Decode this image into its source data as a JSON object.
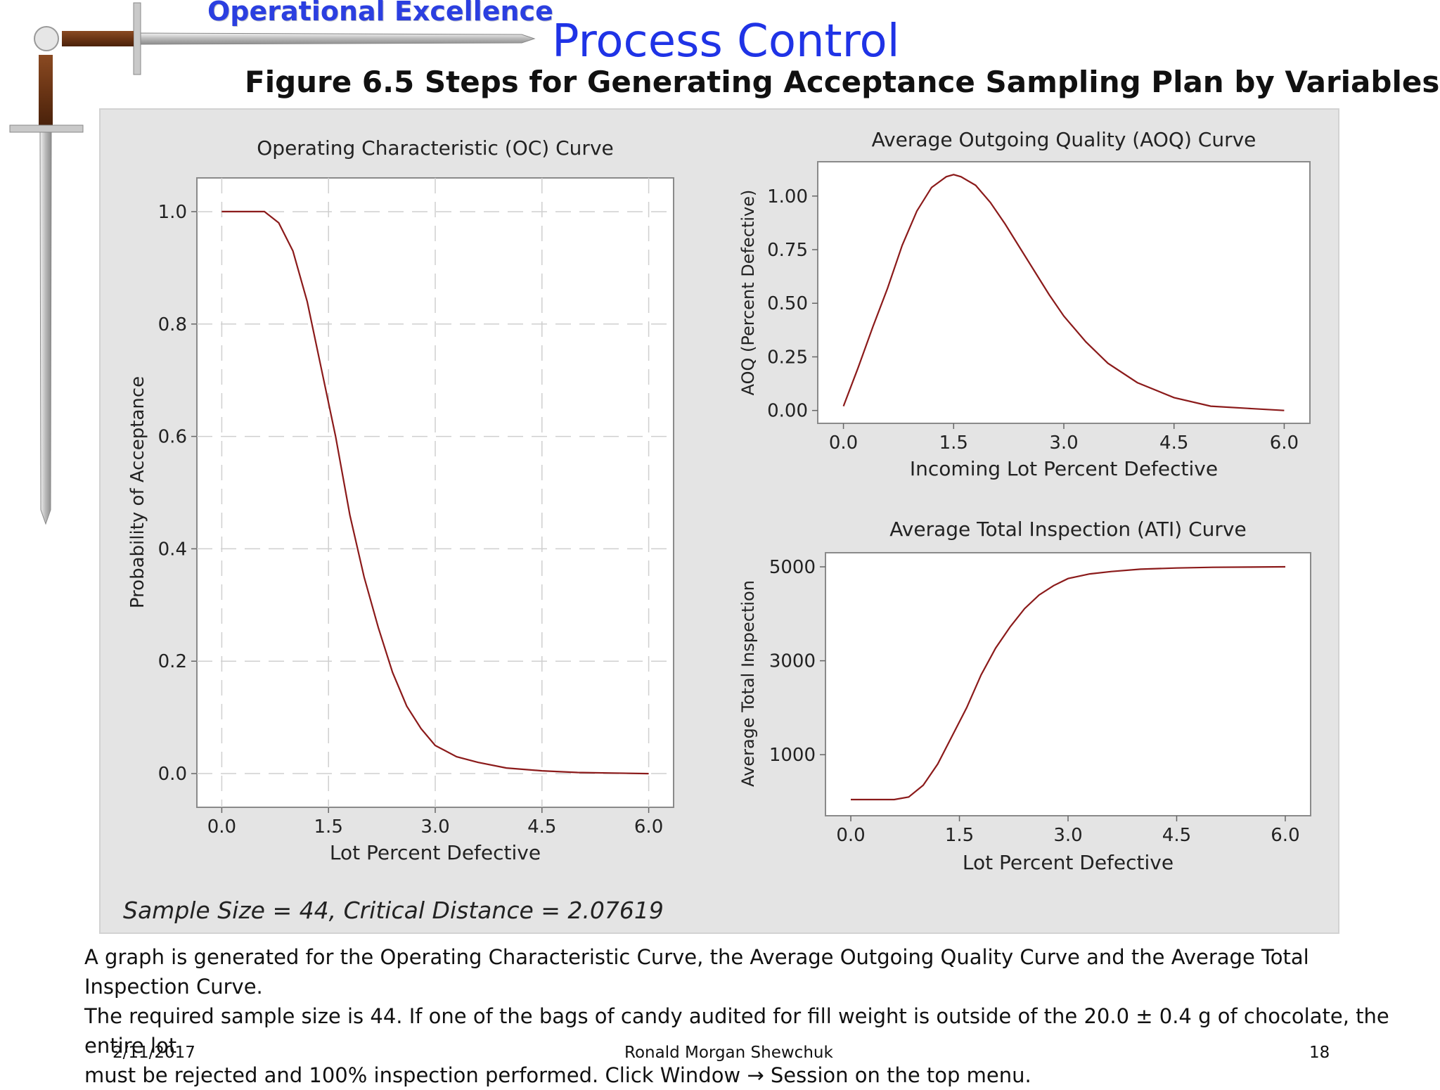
{
  "header": {
    "brand": "Operational Excellence",
    "title": "Process Control",
    "figure_title": "Figure 6.5  Steps for Generating Acceptance Sampling Plan by Variables"
  },
  "icons": {
    "logo": "sword-icon"
  },
  "panel": {
    "annotation": "Sample Size = 44, Critical Distance = 2.07619"
  },
  "colors": {
    "curve": "#8b1a1a",
    "panel_bg": "#e4e4e4",
    "title": "#1f33e6"
  },
  "chart_data": [
    {
      "id": "oc",
      "type": "line",
      "title": "Operating Characteristic (OC) Curve",
      "xlabel": "Lot Percent Defective",
      "ylabel": "Probability of Acceptance",
      "xlim": [
        -0.35,
        6.35
      ],
      "ylim": [
        -0.06,
        1.06
      ],
      "xticks": [
        0.0,
        1.5,
        3.0,
        4.5,
        6.0
      ],
      "xtick_labels": [
        "0.0",
        "1.5",
        "3.0",
        "4.5",
        "6.0"
      ],
      "yticks": [
        0.0,
        0.2,
        0.4,
        0.6,
        0.8,
        1.0
      ],
      "ytick_labels": [
        "0.0",
        "0.2",
        "0.4",
        "0.6",
        "0.8",
        "1.0"
      ],
      "grid": true,
      "series": [
        {
          "x": [
            0.0,
            0.3,
            0.6,
            0.8,
            1.0,
            1.2,
            1.4,
            1.6,
            1.8,
            2.0,
            2.2,
            2.4,
            2.6,
            2.8,
            3.0,
            3.3,
            3.6,
            4.0,
            4.5,
            5.0,
            5.5,
            6.0
          ],
          "y": [
            1.0,
            1.0,
            1.0,
            0.98,
            0.93,
            0.84,
            0.72,
            0.6,
            0.46,
            0.35,
            0.26,
            0.18,
            0.12,
            0.08,
            0.05,
            0.03,
            0.02,
            0.01,
            0.005,
            0.002,
            0.001,
            0.0
          ]
        }
      ]
    },
    {
      "id": "aoq",
      "type": "line",
      "title": "Average Outgoing Quality (AOQ) Curve",
      "xlabel": "Incoming Lot Percent Defective",
      "ylabel": "AOQ (Percent Defective)",
      "xlim": [
        -0.35,
        6.35
      ],
      "ylim": [
        -0.06,
        1.16
      ],
      "xticks": [
        0.0,
        1.5,
        3.0,
        4.5,
        6.0
      ],
      "xtick_labels": [
        "0.0",
        "1.5",
        "3.0",
        "4.5",
        "6.0"
      ],
      "yticks": [
        0.0,
        0.25,
        0.5,
        0.75,
        1.0
      ],
      "ytick_labels": [
        "0.00",
        "0.25",
        "0.50",
        "0.75",
        "1.00"
      ],
      "grid": false,
      "series": [
        {
          "x": [
            0.0,
            0.2,
            0.4,
            0.6,
            0.8,
            1.0,
            1.2,
            1.4,
            1.5,
            1.6,
            1.8,
            2.0,
            2.2,
            2.4,
            2.6,
            2.8,
            3.0,
            3.3,
            3.6,
            4.0,
            4.5,
            5.0,
            5.5,
            6.0
          ],
          "y": [
            0.02,
            0.2,
            0.39,
            0.57,
            0.77,
            0.93,
            1.04,
            1.09,
            1.1,
            1.09,
            1.05,
            0.97,
            0.87,
            0.76,
            0.65,
            0.54,
            0.44,
            0.32,
            0.22,
            0.13,
            0.06,
            0.02,
            0.01,
            0.0
          ]
        }
      ]
    },
    {
      "id": "ati",
      "type": "line",
      "title": "Average Total Inspection (ATI) Curve",
      "xlabel": "Lot Percent Defective",
      "ylabel": "Average Total Inspection",
      "xlim": [
        -0.35,
        6.35
      ],
      "ylim": [
        -300,
        5300
      ],
      "xticks": [
        0.0,
        1.5,
        3.0,
        4.5,
        6.0
      ],
      "xtick_labels": [
        "0.0",
        "1.5",
        "3.0",
        "4.5",
        "6.0"
      ],
      "yticks": [
        1000,
        3000,
        5000
      ],
      "ytick_labels": [
        "1000",
        "3000",
        "5000"
      ],
      "grid": false,
      "series": [
        {
          "x": [
            0.0,
            0.3,
            0.6,
            0.8,
            1.0,
            1.2,
            1.4,
            1.6,
            1.8,
            2.0,
            2.2,
            2.4,
            2.6,
            2.8,
            3.0,
            3.3,
            3.6,
            4.0,
            4.5,
            5.0,
            5.5,
            6.0
          ],
          "y": [
            44,
            44,
            44,
            100,
            350,
            800,
            1400,
            2000,
            2700,
            3270,
            3720,
            4110,
            4400,
            4600,
            4750,
            4850,
            4900,
            4950,
            4975,
            4990,
            4995,
            5000
          ]
        }
      ]
    }
  ],
  "caption": {
    "line1": "A graph is generated for the Operating Characteristic Curve, the Average Outgoing Quality Curve and the Average Total Inspection Curve.",
    "line2": "The required sample size is 44.  If one of the bags of candy audited for fill weight is outside of the 20.0 ± 0.4 g of chocolate, the entire lot",
    "line3": "must be rejected and 100% inspection performed.  Click Window → Session on the top menu."
  },
  "footer": {
    "date": "2/11/2017",
    "author": "Ronald Morgan Shewchuk",
    "page": "18"
  }
}
